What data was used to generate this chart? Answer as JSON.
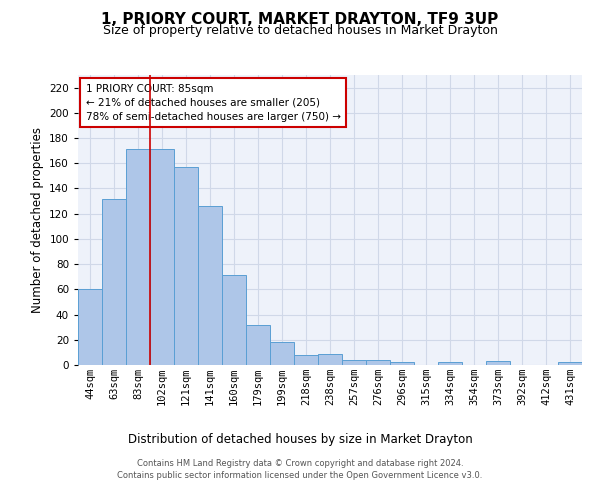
{
  "title": "1, PRIORY COURT, MARKET DRAYTON, TF9 3UP",
  "subtitle": "Size of property relative to detached houses in Market Drayton",
  "xlabel": "Distribution of detached houses by size in Market Drayton",
  "ylabel": "Number of detached properties",
  "categories": [
    "44sqm",
    "63sqm",
    "83sqm",
    "102sqm",
    "121sqm",
    "141sqm",
    "160sqm",
    "179sqm",
    "199sqm",
    "218sqm",
    "238sqm",
    "257sqm",
    "276sqm",
    "296sqm",
    "315sqm",
    "334sqm",
    "354sqm",
    "373sqm",
    "392sqm",
    "412sqm",
    "431sqm"
  ],
  "values": [
    60,
    132,
    171,
    171,
    157,
    126,
    71,
    32,
    18,
    8,
    9,
    4,
    4,
    2,
    0,
    2,
    0,
    3,
    0,
    0,
    2
  ],
  "bar_color": "#aec6e8",
  "bar_edge_color": "#5a9fd4",
  "grid_color": "#d0d8e8",
  "background_color": "#eef2fa",
  "vline_color": "#cc0000",
  "vline_x": 2.5,
  "annotation_text": "1 PRIORY COURT: 85sqm\n← 21% of detached houses are smaller (205)\n78% of semi-detached houses are larger (750) →",
  "ylim": [
    0,
    230
  ],
  "yticks": [
    0,
    20,
    40,
    60,
    80,
    100,
    120,
    140,
    160,
    180,
    200,
    220
  ],
  "footer": "Contains HM Land Registry data © Crown copyright and database right 2024.\nContains public sector information licensed under the Open Government Licence v3.0.",
  "title_fontsize": 11,
  "subtitle_fontsize": 9,
  "xlabel_fontsize": 8.5,
  "ylabel_fontsize": 8.5,
  "tick_fontsize": 7.5,
  "footer_fontsize": 6,
  "annotation_fontsize": 7.5
}
